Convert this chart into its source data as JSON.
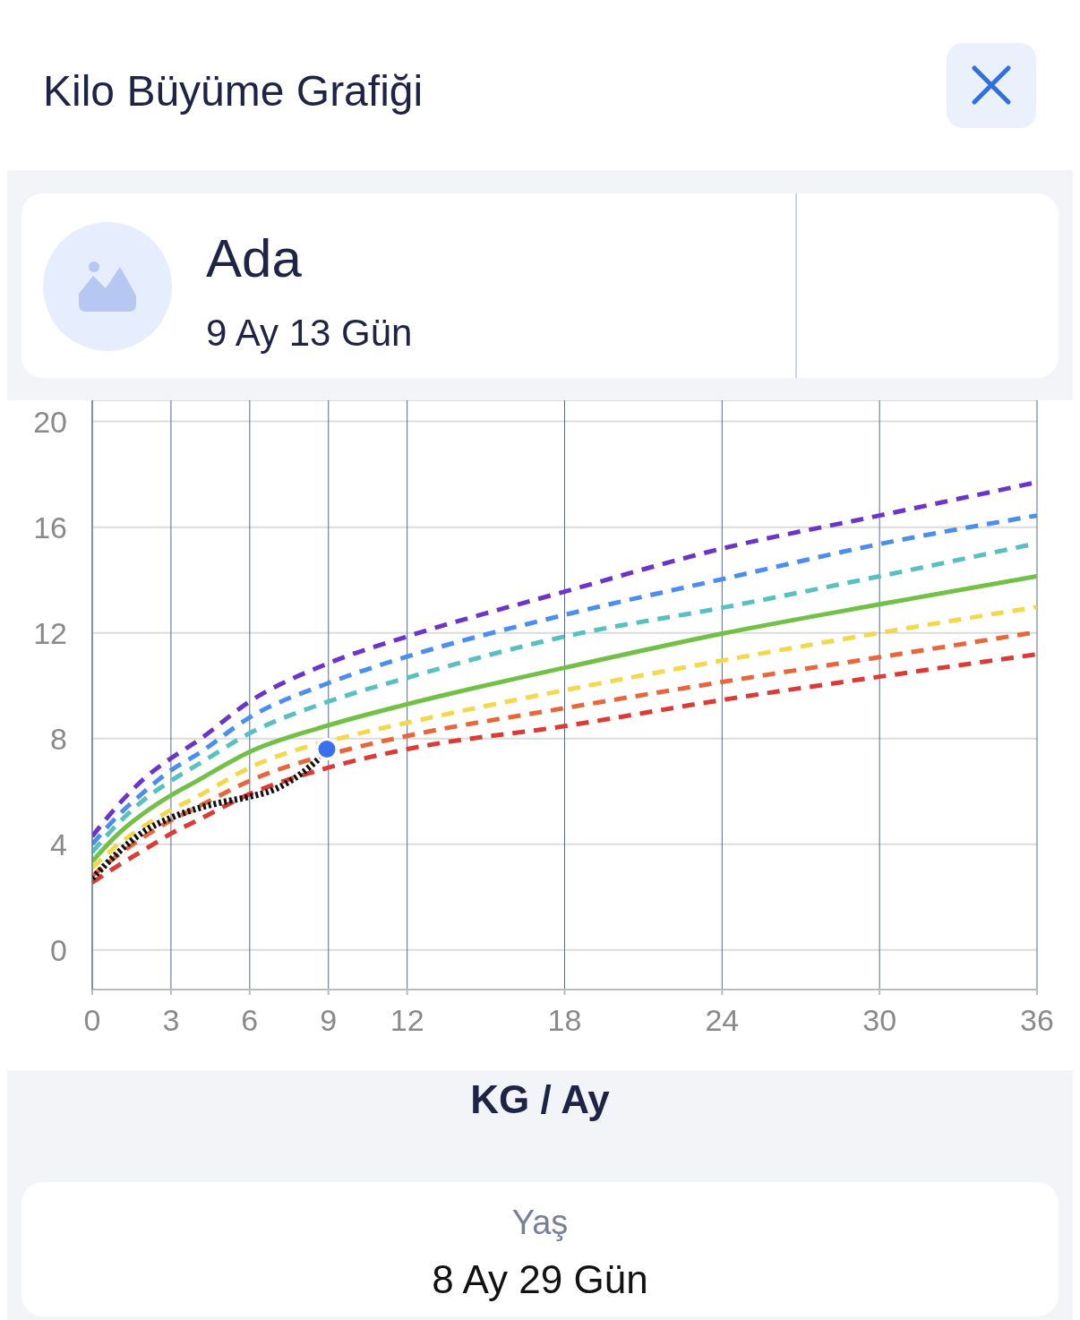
{
  "chart_data": {
    "type": "line",
    "title": "Kilo Büyüme Grafiği",
    "xlabel": "KG / Ay",
    "annotations": [
      "Ada",
      "9 Ay 13 Gün",
      "Yaş",
      "8 Ay 29 Gün"
    ],
    "xlim": [
      0,
      36
    ],
    "xticks": [
      0,
      3,
      6,
      9,
      12,
      18,
      24,
      30,
      36
    ],
    "ylim": [
      -1.5,
      20.8
    ],
    "yticks": [
      0,
      4,
      8,
      12,
      16,
      20
    ],
    "grid": true,
    "marker": "none",
    "series": [
      {
        "color": "#6a35c8",
        "line_style": "dashed",
        "x": [
          0,
          1,
          2,
          3,
          4,
          6,
          9,
          12,
          18,
          24,
          30,
          36
        ],
        "values": [
          4.3,
          5.5,
          6.5,
          7.25,
          7.9,
          9.4,
          10.85,
          11.86,
          13.56,
          15.19,
          16.44,
          17.7
        ]
      },
      {
        "color": "#4a8ef0",
        "line_style": "dashed",
        "x": [
          0,
          1,
          2,
          3,
          4,
          6,
          9,
          12,
          18,
          24,
          30,
          36
        ],
        "values": [
          4.0,
          5.1,
          6.0,
          6.8,
          7.4,
          8.8,
          10.1,
          11.1,
          12.68,
          14.03,
          15.36,
          16.44
        ]
      },
      {
        "color": "#58c0c0",
        "line_style": "dashed",
        "x": [
          0,
          1,
          2,
          3,
          4,
          6,
          9,
          12,
          18,
          24,
          30,
          36
        ],
        "values": [
          3.7,
          4.8,
          5.7,
          6.4,
          7.0,
          8.2,
          9.4,
          10.3,
          11.86,
          12.95,
          14.14,
          15.39
        ]
      },
      {
        "color": "#72c045",
        "line_style": "solid",
        "x": [
          0,
          1,
          2,
          3,
          4,
          6,
          9,
          12,
          18,
          24,
          30,
          36
        ],
        "values": [
          3.35,
          4.4,
          5.2,
          5.85,
          6.4,
          7.5,
          8.5,
          9.3,
          10.68,
          11.97,
          13.08,
          14.14
        ]
      },
      {
        "color": "#f2d84a",
        "line_style": "dashed",
        "x": [
          0,
          1,
          2,
          3,
          4,
          6,
          10,
          12,
          18,
          24,
          30,
          36
        ],
        "values": [
          3.1,
          4.0,
          4.7,
          5.3,
          5.8,
          6.9,
          8.15,
          8.6,
          9.83,
          10.95,
          12.0,
          12.98
        ]
      },
      {
        "color": "#e8673a",
        "line_style": "dashed",
        "x": [
          0,
          1,
          2,
          3,
          4,
          6,
          10,
          12,
          18,
          24,
          30,
          36
        ],
        "values": [
          2.8,
          3.6,
          4.3,
          4.9,
          5.4,
          6.4,
          7.65,
          8.1,
          9.15,
          10.14,
          11.08,
          12.03
        ]
      },
      {
        "color": "#dc3a35",
        "line_style": "dashed",
        "x": [
          0,
          1,
          2,
          3,
          4,
          6,
          9,
          12,
          18,
          24,
          30,
          36
        ],
        "values": [
          2.55,
          3.2,
          3.8,
          4.4,
          4.9,
          5.9,
          6.9,
          7.6,
          8.47,
          9.46,
          10.34,
          11.19
        ]
      },
      {
        "color": "#111111",
        "line_style": "dotted",
        "x": [
          0,
          1,
          2,
          3,
          4,
          5,
          6,
          7,
          8,
          8.6
        ],
        "values": [
          2.7,
          3.7,
          4.5,
          5.0,
          5.35,
          5.6,
          5.8,
          6.1,
          6.7,
          7.2
        ]
      },
      {
        "type": "scatter",
        "marker": "circle",
        "color": "#3a6ff0",
        "x": [
          8.94
        ],
        "values": [
          7.6
        ]
      }
    ]
  }
}
